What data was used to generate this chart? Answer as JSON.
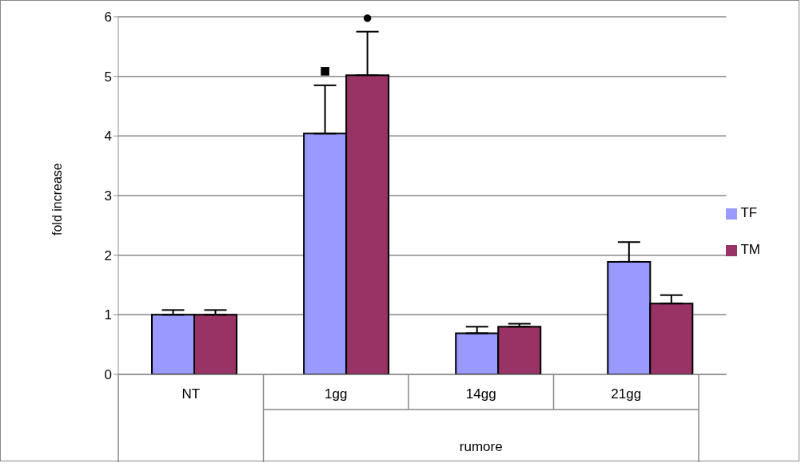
{
  "chart_data": {
    "type": "bar",
    "ylabel": "fold increase",
    "xlabel": "rumore",
    "categories": [
      "NT",
      "1gg",
      "14gg",
      "21gg"
    ],
    "series": [
      {
        "name": "TF",
        "color": "#9999ff",
        "values": [
          1.0,
          4.04,
          0.69,
          1.89
        ],
        "errors": [
          [
            1.0,
            1.08
          ],
          [
            4.04,
            4.85
          ],
          [
            0.69,
            0.8
          ],
          [
            1.89,
            2.22
          ]
        ],
        "value_labels": [
          null,
          "■",
          null,
          null
        ]
      },
      {
        "name": "TM",
        "color": "#993366",
        "values": [
          1.0,
          5.02,
          0.8,
          1.19
        ],
        "errors": [
          [
            1.0,
            1.08
          ],
          [
            5.02,
            5.75
          ],
          [
            0.8,
            0.85
          ],
          [
            1.19,
            1.33
          ]
        ],
        "value_labels": [
          null,
          "●",
          null,
          null
        ]
      }
    ],
    "ylim": [
      0,
      6
    ],
    "yticks": [
      0,
      1,
      2,
      3,
      4,
      5,
      6
    ],
    "grid": "y",
    "legend": "right"
  }
}
